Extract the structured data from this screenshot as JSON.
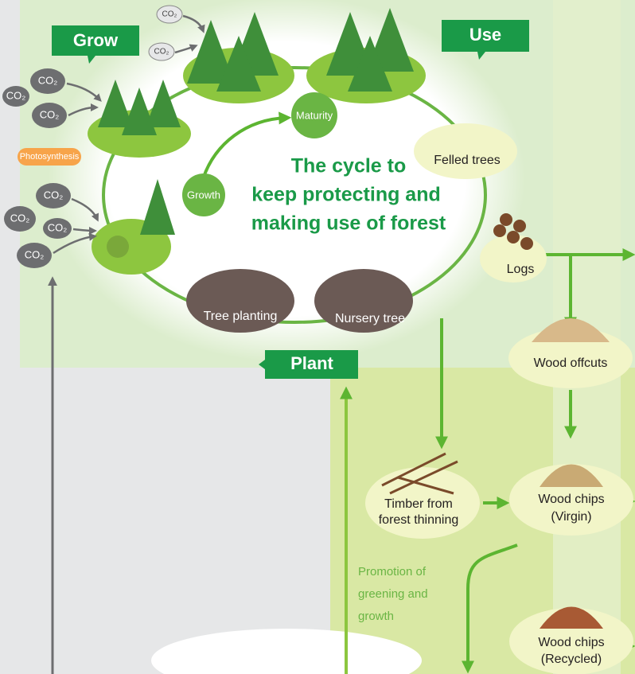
{
  "labels": {
    "grow": "Grow",
    "use": "Use",
    "plant": "Plant",
    "photosynthesis": "Photosynthesis",
    "maturity": "Maturity",
    "growth": "Growth"
  },
  "cycle_title": [
    "The cycle to",
    "keep protecting and",
    "making use of forest"
  ],
  "co2": [
    "CO₂",
    "CO₂",
    "CO₂",
    "CO₂",
    "CO₂",
    "CO₂",
    "CO₂",
    "CO₂",
    "CO₂"
  ],
  "stages": {
    "felled_trees": "Felled trees",
    "logs": "Logs",
    "tree_planting": "Tree planting",
    "nursery_tree": "Nursery tree"
  },
  "materials": {
    "wood_offcuts": [
      "Wood offcuts"
    ],
    "timber": [
      "Timber from",
      "forest thinning"
    ],
    "chips_virgin": [
      "Wood chips",
      "(Virgin)"
    ],
    "chips_recycled": [
      "Wood chips",
      "(Recycled)"
    ]
  },
  "promotion": [
    "Promotion of",
    "greening and",
    "growth"
  ]
}
